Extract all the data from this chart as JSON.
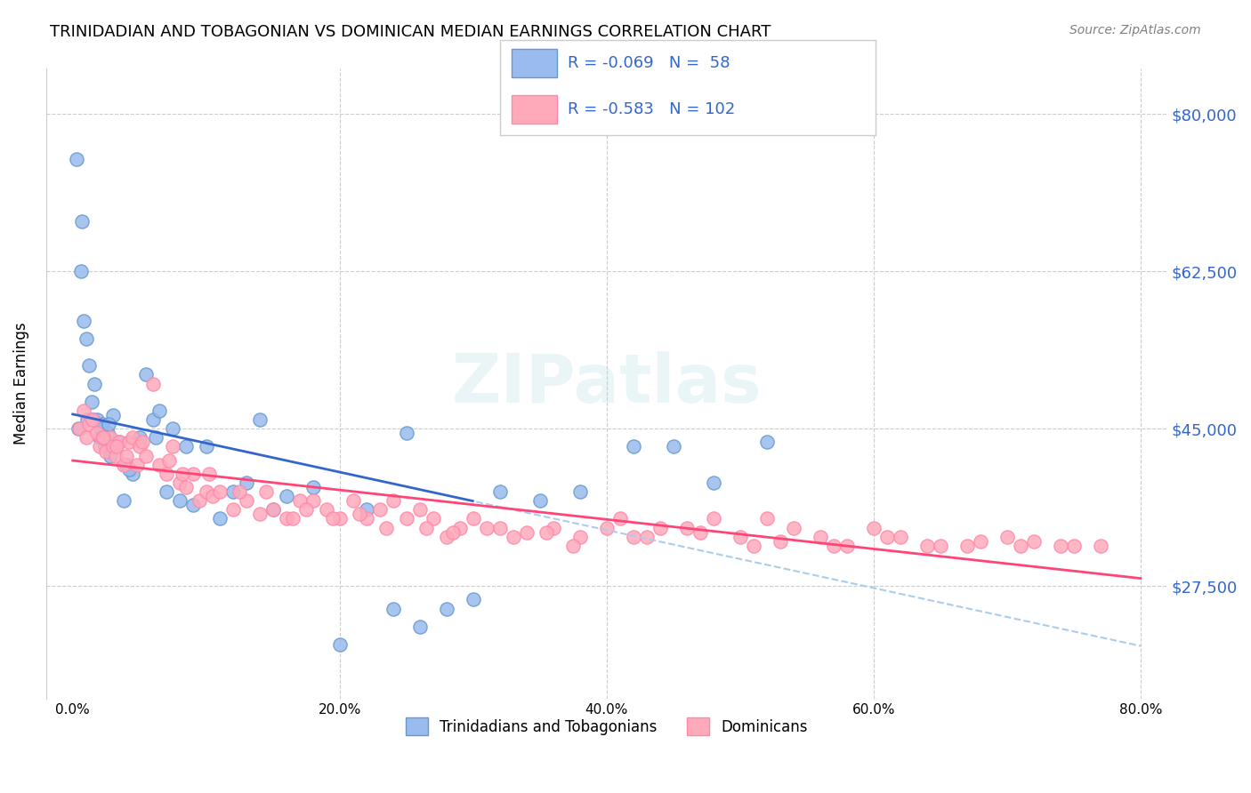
{
  "title": "TRINIDADIAN AND TOBAGONIAN VS DOMINICAN MEDIAN EARNINGS CORRELATION CHART",
  "source": "Source: ZipAtlas.com",
  "xlabel_ticks": [
    "0.0%",
    "20.0%",
    "40.0%",
    "60.0%",
    "80.0%"
  ],
  "xlabel_vals": [
    0.0,
    20.0,
    40.0,
    60.0,
    80.0
  ],
  "ylabel_ticks": [
    "$27,500",
    "$45,000",
    "$62,500",
    "$80,000"
  ],
  "ylabel_vals": [
    27500,
    45000,
    62500,
    80000
  ],
  "xmin": -2.0,
  "xmax": 82.0,
  "ymin": 15000,
  "ymax": 85000,
  "blue_R": -0.069,
  "blue_N": 58,
  "pink_R": -0.583,
  "pink_N": 102,
  "blue_color": "#6699CC",
  "pink_color": "#FF88AA",
  "blue_scatter_color": "#99BBEE",
  "pink_scatter_color": "#FFAABB",
  "blue_line_color": "#3366CC",
  "pink_line_color": "#FF4477",
  "dashed_line_color": "#AACCEE",
  "marker_size": 120,
  "legend_label_blue": "Trinidadians and Tobagonians",
  "legend_label_pink": "Dominicans",
  "ylabel": "Median Earnings",
  "watermark": "ZIPatlas",
  "blue_scatter_x": [
    0.4,
    0.6,
    0.8,
    1.0,
    1.2,
    1.4,
    1.6,
    1.8,
    2.0,
    2.2,
    2.4,
    2.6,
    2.8,
    3.0,
    3.5,
    4.0,
    4.5,
    5.0,
    5.5,
    6.0,
    6.5,
    7.0,
    7.5,
    8.0,
    9.0,
    10.0,
    11.0,
    12.0,
    13.0,
    14.0,
    15.0,
    16.0,
    18.0,
    20.0,
    22.0,
    24.0,
    26.0,
    28.0,
    30.0,
    32.0,
    35.0,
    38.0,
    42.0,
    45.0,
    48.0,
    52.0,
    0.3,
    0.7,
    1.1,
    1.5,
    2.1,
    2.7,
    3.2,
    3.8,
    4.2,
    6.2,
    8.5,
    25.0
  ],
  "blue_scatter_y": [
    45000,
    62500,
    57000,
    55000,
    52000,
    48000,
    50000,
    46000,
    44000,
    45500,
    43000,
    44500,
    42000,
    46500,
    43500,
    41000,
    40000,
    44000,
    51000,
    46000,
    47000,
    38000,
    45000,
    37000,
    36500,
    43000,
    35000,
    38000,
    39000,
    46000,
    36000,
    37500,
    38500,
    21000,
    36000,
    25000,
    23000,
    25000,
    26000,
    38000,
    37000,
    38000,
    43000,
    43000,
    39000,
    43500,
    75000,
    68000,
    46000,
    46000,
    45000,
    45500,
    43000,
    37000,
    40500,
    44000,
    43000,
    44500
  ],
  "pink_scatter_x": [
    0.5,
    0.8,
    1.0,
    1.2,
    1.5,
    1.8,
    2.0,
    2.2,
    2.5,
    2.8,
    3.0,
    3.2,
    3.5,
    3.8,
    4.0,
    4.2,
    4.5,
    4.8,
    5.0,
    5.5,
    6.0,
    6.5,
    7.0,
    7.5,
    8.0,
    8.5,
    9.0,
    9.5,
    10.0,
    10.5,
    11.0,
    12.0,
    13.0,
    14.0,
    15.0,
    16.0,
    17.0,
    18.0,
    19.0,
    20.0,
    21.0,
    22.0,
    23.0,
    24.0,
    25.0,
    26.0,
    27.0,
    28.0,
    29.0,
    30.0,
    32.0,
    34.0,
    36.0,
    38.0,
    40.0,
    42.0,
    44.0,
    46.0,
    48.0,
    50.0,
    52.0,
    54.0,
    56.0,
    58.0,
    60.0,
    62.0,
    65.0,
    68.0,
    70.0,
    72.0,
    75.0,
    77.0,
    2.3,
    3.3,
    5.2,
    7.2,
    8.2,
    10.2,
    12.5,
    14.5,
    16.5,
    17.5,
    19.5,
    21.5,
    23.5,
    26.5,
    28.5,
    31.0,
    33.0,
    35.5,
    37.5,
    41.0,
    43.0,
    47.0,
    51.0,
    53.0,
    57.0,
    61.0,
    64.0,
    67.0,
    71.0,
    74.0
  ],
  "pink_scatter_y": [
    45000,
    47000,
    44000,
    45500,
    46000,
    44500,
    43000,
    44000,
    42500,
    44000,
    43000,
    42000,
    43500,
    41000,
    42000,
    43500,
    44000,
    41000,
    43000,
    42000,
    50000,
    41000,
    40000,
    43000,
    39000,
    38500,
    40000,
    37000,
    38000,
    37500,
    38000,
    36000,
    37000,
    35500,
    36000,
    35000,
    37000,
    37000,
    36000,
    35000,
    37000,
    35000,
    36000,
    37000,
    35000,
    36000,
    35000,
    33000,
    34000,
    35000,
    34000,
    33500,
    34000,
    33000,
    34000,
    33000,
    34000,
    34000,
    35000,
    33000,
    35000,
    34000,
    33000,
    32000,
    34000,
    33000,
    32000,
    32500,
    33000,
    32500,
    32000,
    32000,
    44000,
    43000,
    43500,
    41500,
    40000,
    40000,
    38000,
    38000,
    35000,
    36000,
    35000,
    35500,
    34000,
    34000,
    33500,
    34000,
    33000,
    33500,
    32000,
    35000,
    33000,
    33500,
    32000,
    32500,
    32000,
    33000,
    32000,
    32000,
    32000,
    32000
  ]
}
